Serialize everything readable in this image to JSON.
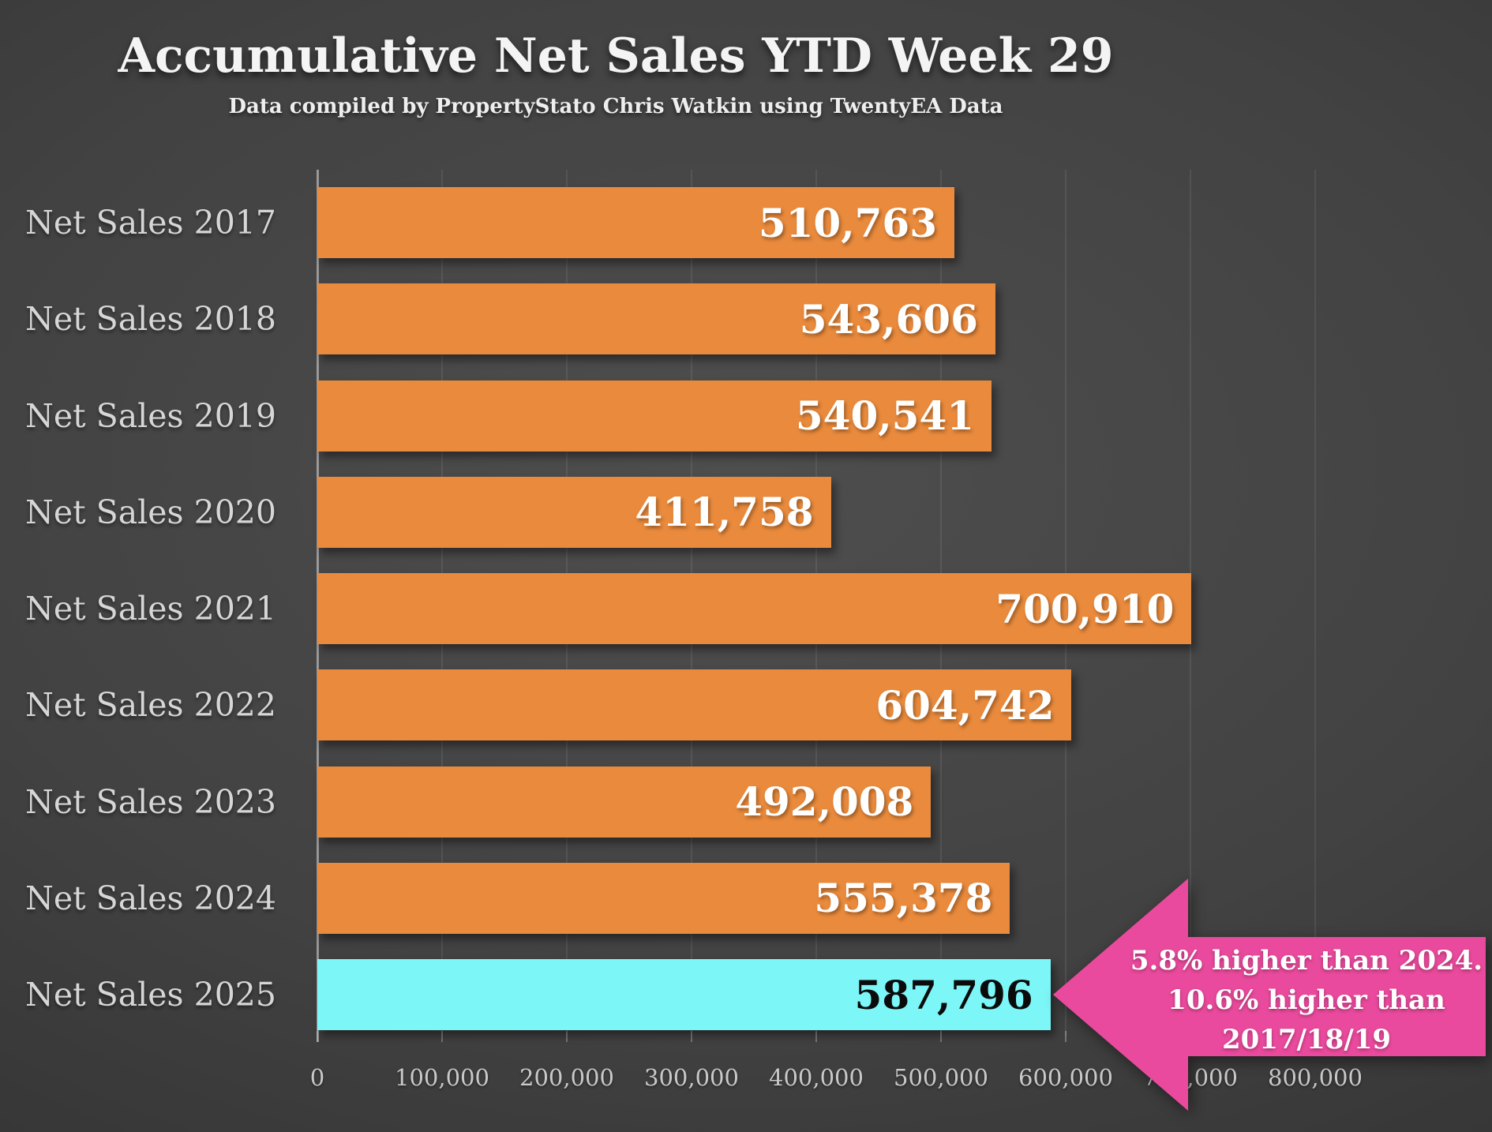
{
  "header": {
    "title": "Accumulative Net Sales YTD Week 29",
    "subtitle": "Data compiled by PropertyStato Chris Watkin using TwentyEA Data"
  },
  "chart_data": {
    "type": "bar",
    "orientation": "horizontal",
    "title": "Accumulative Net Sales YTD Week 29",
    "subtitle": "Data compiled by PropertyStato Chris Watkin using TwentyEA Data",
    "categories": [
      "Net Sales 2017",
      "Net Sales 2018",
      "Net Sales 2019",
      "Net Sales 2020",
      "Net Sales 2021",
      "Net Sales 2022",
      "Net Sales 2023",
      "Net Sales 2024",
      "Net Sales 2025"
    ],
    "values": [
      510763,
      543606,
      540541,
      411758,
      700910,
      604742,
      492008,
      555378,
      587796
    ],
    "value_labels": [
      "510,763",
      "543,606",
      "540,541",
      "411,758",
      "700,910",
      "604,742",
      "492,008",
      "555,378",
      "587,796"
    ],
    "xlim": [
      0,
      800000
    ],
    "x_ticks": [
      0,
      100000,
      200000,
      300000,
      400000,
      500000,
      600000,
      700000,
      800000
    ],
    "x_tick_labels": [
      "0",
      "100,000",
      "200,000",
      "300,000",
      "400,000",
      "500,000",
      "600,000",
      "700,000",
      "800,000"
    ],
    "grid": "vertical",
    "legend": "none",
    "bar_color": "#E98A3C",
    "highlight_color": "#7DF6F8",
    "highlight_index": 8,
    "value_label_color": "#FFFFFF",
    "highlight_value_label_color": "#0B0B0B"
  },
  "annotation": {
    "lines": [
      "5.8% higher than 2024.",
      "10.6% higher than",
      "2017/18/19"
    ],
    "color": "#EA4A9D",
    "shape": "left-arrow"
  }
}
